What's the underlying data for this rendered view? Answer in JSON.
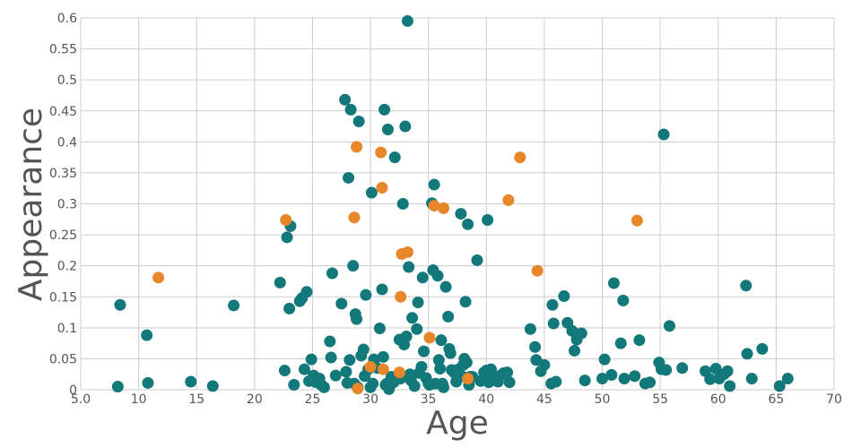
{
  "chart_data": {
    "type": "scatter",
    "xlabel": "Age",
    "ylabel": "Appearance",
    "xlim": [
      5,
      70
    ],
    "ylim": [
      0,
      0.6
    ],
    "grid": true,
    "x_ticks": [
      "5.0",
      "10",
      "15",
      "20",
      "25",
      "30",
      "35",
      "40",
      "45",
      "50",
      "55",
      "60",
      "65",
      "70"
    ],
    "y_ticks": [
      "0",
      "0.05",
      "0.1",
      "0.15",
      "0.2",
      "0.25",
      "0.3",
      "0.35",
      "0.4",
      "0.45",
      "0.5",
      "0.55",
      "0.6"
    ],
    "colors": {
      "teal": "#13787a",
      "orange": "#e8862a"
    },
    "series": [
      {
        "color": "#13787a",
        "points": [
          [
            8.2,
            0.005
          ],
          [
            8.4,
            0.137
          ],
          [
            10.7,
            0.088
          ],
          [
            10.8,
            0.011
          ],
          [
            14.5,
            0.013
          ],
          [
            16.4,
            0.006
          ],
          [
            18.2,
            0.136
          ],
          [
            22.2,
            0.173
          ],
          [
            22.6,
            0.031
          ],
          [
            22.8,
            0.246
          ],
          [
            23.0,
            0.131
          ],
          [
            23.1,
            0.264
          ],
          [
            23.4,
            0.008
          ],
          [
            23.9,
            0.143
          ],
          [
            24.1,
            0.148
          ],
          [
            24.3,
            0.033
          ],
          [
            24.5,
            0.158
          ],
          [
            24.7,
            0.014
          ],
          [
            24.9,
            0.049
          ],
          [
            25.1,
            0.023
          ],
          [
            25.3,
            0.012
          ],
          [
            25.6,
            0.018
          ],
          [
            25.8,
            0.007
          ],
          [
            26.0,
            0.004
          ],
          [
            26.5,
            0.078
          ],
          [
            26.6,
            0.052
          ],
          [
            26.7,
            0.188
          ],
          [
            27.0,
            0.023
          ],
          [
            27.5,
            0.139
          ],
          [
            27.8,
            0.468
          ],
          [
            27.9,
            0.029
          ],
          [
            28.0,
            0.011
          ],
          [
            28.1,
            0.342
          ],
          [
            28.2,
            0.048
          ],
          [
            28.3,
            0.452
          ],
          [
            28.5,
            0.2
          ],
          [
            28.6,
            0.01
          ],
          [
            28.7,
            0.122
          ],
          [
            28.8,
            0.114
          ],
          [
            28.9,
            0.004
          ],
          [
            29.0,
            0.433
          ],
          [
            29.2,
            0.055
          ],
          [
            29.4,
            0.065
          ],
          [
            29.5,
            0.022
          ],
          [
            29.6,
            0.153
          ],
          [
            29.8,
            0.033
          ],
          [
            30.0,
            0.004
          ],
          [
            30.1,
            0.318
          ],
          [
            30.2,
            0.01
          ],
          [
            30.3,
            0.049
          ],
          [
            30.6,
            0.035
          ],
          [
            30.8,
            0.099
          ],
          [
            31.0,
            0.162
          ],
          [
            31.1,
            0.053
          ],
          [
            31.2,
            0.452
          ],
          [
            31.3,
            0.008
          ],
          [
            31.4,
            0.01
          ],
          [
            31.5,
            0.42
          ],
          [
            31.6,
            0.001
          ],
          [
            31.8,
            0.021
          ],
          [
            32.0,
            0.012
          ],
          [
            32.1,
            0.375
          ],
          [
            32.5,
            0.081
          ],
          [
            32.6,
            0.018
          ],
          [
            32.8,
            0.3
          ],
          [
            32.9,
            0.073
          ],
          [
            33.0,
            0.425
          ],
          [
            33.1,
            0.086
          ],
          [
            33.2,
            0.595
          ],
          [
            33.3,
            0.198
          ],
          [
            33.4,
            0.025
          ],
          [
            33.5,
            0.015
          ],
          [
            33.6,
            0.116
          ],
          [
            33.8,
            0.006
          ],
          [
            34.0,
            0.098
          ],
          [
            34.1,
            0.141
          ],
          [
            34.2,
            0.027
          ],
          [
            34.4,
            0.037
          ],
          [
            34.5,
            0.181
          ],
          [
            34.6,
            0.062
          ],
          [
            34.8,
            0.019
          ],
          [
            35.0,
            0.01
          ],
          [
            35.1,
            0.008
          ],
          [
            35.3,
            0.301
          ],
          [
            35.4,
            0.193
          ],
          [
            35.5,
            0.331
          ],
          [
            35.6,
            0.01
          ],
          [
            35.8,
            0.184
          ],
          [
            35.9,
            0.048
          ],
          [
            36.0,
            0.034
          ],
          [
            36.1,
            0.08
          ],
          [
            36.2,
            0.01
          ],
          [
            36.3,
            0.004
          ],
          [
            36.5,
            0.166
          ],
          [
            36.7,
            0.118
          ],
          [
            36.8,
            0.066
          ],
          [
            36.9,
            0.059
          ],
          [
            37.0,
            0.032
          ],
          [
            37.2,
            0.028
          ],
          [
            37.4,
            0.013
          ],
          [
            37.6,
            0.033
          ],
          [
            37.8,
            0.284
          ],
          [
            37.9,
            0.022
          ],
          [
            38.0,
            0.04
          ],
          [
            38.1,
            0.05
          ],
          [
            38.2,
            0.142
          ],
          [
            38.3,
            0.044
          ],
          [
            38.4,
            0.267
          ],
          [
            38.5,
            0.008
          ],
          [
            38.6,
            0.021
          ],
          [
            38.8,
            0.021
          ],
          [
            39.2,
            0.209
          ],
          [
            39.5,
            0.014
          ],
          [
            39.8,
            0.028
          ],
          [
            40.0,
            0.031
          ],
          [
            40.1,
            0.274
          ],
          [
            40.2,
            0.012
          ],
          [
            40.4,
            0.033
          ],
          [
            40.6,
            0.022
          ],
          [
            40.8,
            0.018
          ],
          [
            41.0,
            0.013
          ],
          [
            41.2,
            0.023
          ],
          [
            41.5,
            0.027
          ],
          [
            41.8,
            0.028
          ],
          [
            42.0,
            0.012
          ],
          [
            43.8,
            0.098
          ],
          [
            44.2,
            0.069
          ],
          [
            44.3,
            0.048
          ],
          [
            44.7,
            0.03
          ],
          [
            45.0,
            0.04
          ],
          [
            45.6,
            0.01
          ],
          [
            45.7,
            0.137
          ],
          [
            45.8,
            0.107
          ],
          [
            46.0,
            0.013
          ],
          [
            46.7,
            0.151
          ],
          [
            47.0,
            0.108
          ],
          [
            47.4,
            0.095
          ],
          [
            47.6,
            0.063
          ],
          [
            47.8,
            0.081
          ],
          [
            48.2,
            0.091
          ],
          [
            48.5,
            0.015
          ],
          [
            50.0,
            0.018
          ],
          [
            50.2,
            0.049
          ],
          [
            50.8,
            0.024
          ],
          [
            51.0,
            0.172
          ],
          [
            51.6,
            0.075
          ],
          [
            51.8,
            0.144
          ],
          [
            51.9,
            0.018
          ],
          [
            52.8,
            0.022
          ],
          [
            53.2,
            0.08
          ],
          [
            53.7,
            0.01
          ],
          [
            54.1,
            0.012
          ],
          [
            54.9,
            0.044
          ],
          [
            55.1,
            0.033
          ],
          [
            55.3,
            0.412
          ],
          [
            55.5,
            0.032
          ],
          [
            55.8,
            0.103
          ],
          [
            56.9,
            0.035
          ],
          [
            58.9,
            0.03
          ],
          [
            59.3,
            0.017
          ],
          [
            59.8,
            0.034
          ],
          [
            60.1,
            0.018
          ],
          [
            60.5,
            0.025
          ],
          [
            60.8,
            0.03
          ],
          [
            61.0,
            0.006
          ],
          [
            62.4,
            0.168
          ],
          [
            62.5,
            0.058
          ],
          [
            62.9,
            0.018
          ],
          [
            63.8,
            0.066
          ],
          [
            65.3,
            0.006
          ],
          [
            66.0,
            0.018
          ]
        ]
      },
      {
        "color": "#e8862a",
        "points": [
          [
            11.7,
            0.181
          ],
          [
            22.7,
            0.274
          ],
          [
            28.6,
            0.278
          ],
          [
            28.8,
            0.392
          ],
          [
            28.9,
            0.002
          ],
          [
            30.0,
            0.037
          ],
          [
            30.9,
            0.383
          ],
          [
            31.0,
            0.326
          ],
          [
            31.1,
            0.033
          ],
          [
            32.5,
            0.028
          ],
          [
            32.6,
            0.15
          ],
          [
            32.7,
            0.219
          ],
          [
            33.2,
            0.222
          ],
          [
            35.1,
            0.084
          ],
          [
            35.5,
            0.297
          ],
          [
            36.3,
            0.293
          ],
          [
            38.4,
            0.018
          ],
          [
            41.9,
            0.306
          ],
          [
            42.9,
            0.375
          ],
          [
            44.4,
            0.192
          ],
          [
            53.0,
            0.273
          ]
        ]
      }
    ]
  }
}
